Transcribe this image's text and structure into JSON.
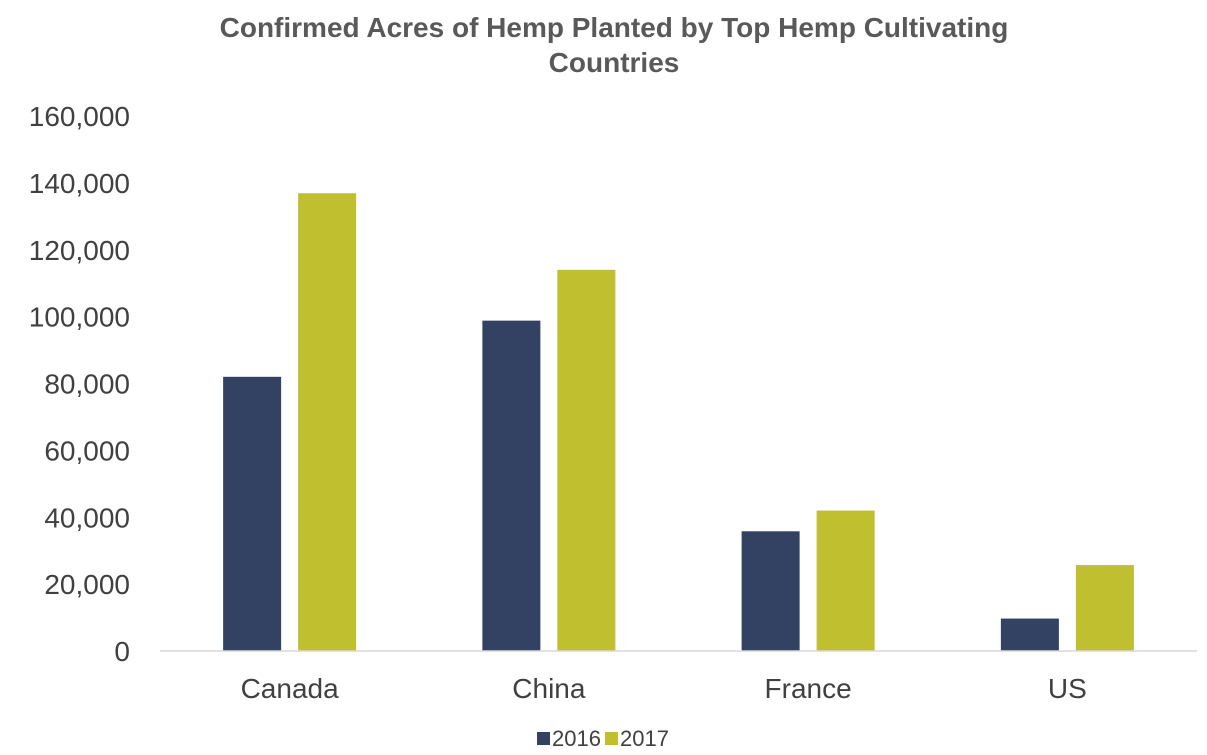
{
  "colors": {
    "series_2016": "#334163",
    "series_2017": "#BFBF30",
    "axis": "#D9D9D9",
    "text": "#404040",
    "title": "#595959"
  },
  "chart_data": {
    "type": "bar",
    "title_lines": [
      "Confirmed Acres of Hemp Planted by Top Hemp Cultivating",
      "Countries"
    ],
    "title": "Confirmed Acres of Hemp Planted by Top Hemp Cultivating Countries",
    "xlabel": "",
    "ylabel": "",
    "categories": [
      "Canada",
      "China",
      "France",
      "US"
    ],
    "series": [
      {
        "name": "2016",
        "values": [
          82000,
          98800,
          35800,
          9700
        ]
      },
      {
        "name": "2017",
        "values": [
          136900,
          114000,
          42000,
          25700
        ]
      }
    ],
    "ylim": [
      0,
      160000
    ],
    "yticks": [
      0,
      20000,
      40000,
      60000,
      80000,
      100000,
      120000,
      140000,
      160000
    ],
    "ytick_labels": [
      "0",
      "20,000",
      "40,000",
      "60,000",
      "80,000",
      "100,000",
      "120,000",
      "140,000",
      "160,000"
    ],
    "grid": false,
    "legend_position": "bottom"
  }
}
